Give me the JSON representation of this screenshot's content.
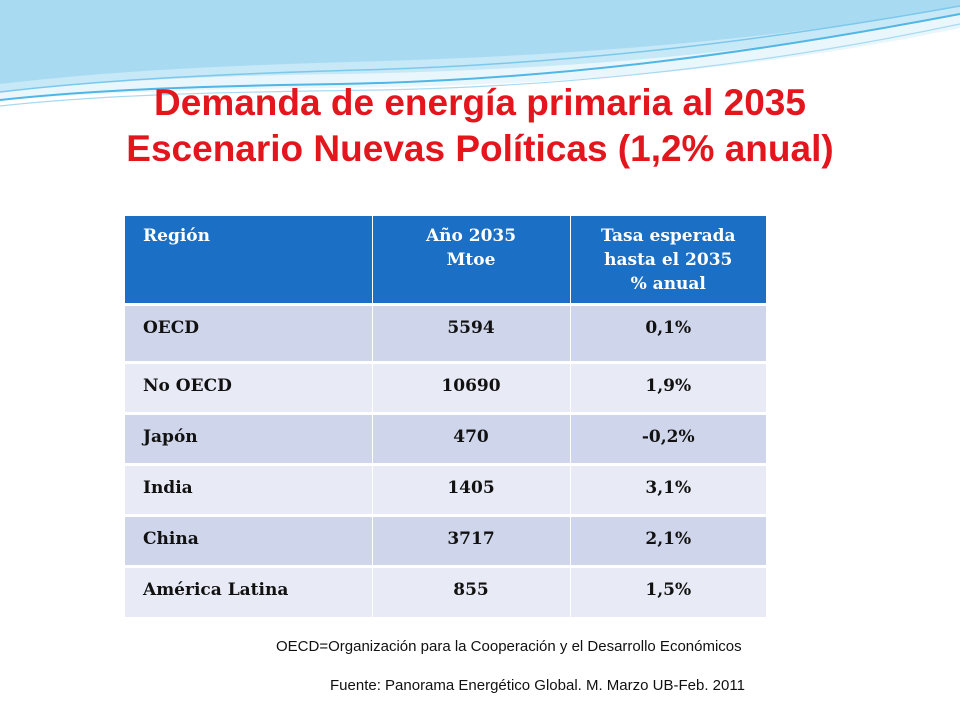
{
  "slide": {
    "title_line1": "Demanda de energía primaria al 2035",
    "title_line2": "Escenario Nuevas Políticas (1,2% anual)",
    "colors": {
      "title": "#e3161d",
      "header_bg": "#1b6fc4",
      "row_odd": "#cfd5ea",
      "row_even": "#e8ebf5",
      "wave": "#4fb6e6"
    }
  },
  "table": {
    "headers": [
      {
        "lines": [
          "Región"
        ]
      },
      {
        "lines": [
          "Año 2035",
          "Mtoe"
        ]
      },
      {
        "lines": [
          "Tasa  esperada",
          "hasta el 2035",
          "% anual"
        ]
      }
    ],
    "rows": [
      {
        "region": "OECD",
        "year2035": "5594",
        "rate": "0,1%"
      },
      {
        "region": "No OECD",
        "year2035": "10690",
        "rate": "1,9%"
      },
      {
        "region": "Japón",
        "year2035": "470",
        "rate": "-0,2%"
      },
      {
        "region": "India",
        "year2035": "1405",
        "rate": "3,1%"
      },
      {
        "region": "China",
        "year2035": "3717",
        "rate": "2,1%"
      },
      {
        "region": "América Latina",
        "year2035": "855",
        "rate": "1,5%"
      }
    ]
  },
  "footer": {
    "note": "OECD=Organización para la Cooperación y el Desarrollo Económicos",
    "source": "Fuente: Panorama Energético Global. M. Marzo UB-Feb. 2011"
  }
}
